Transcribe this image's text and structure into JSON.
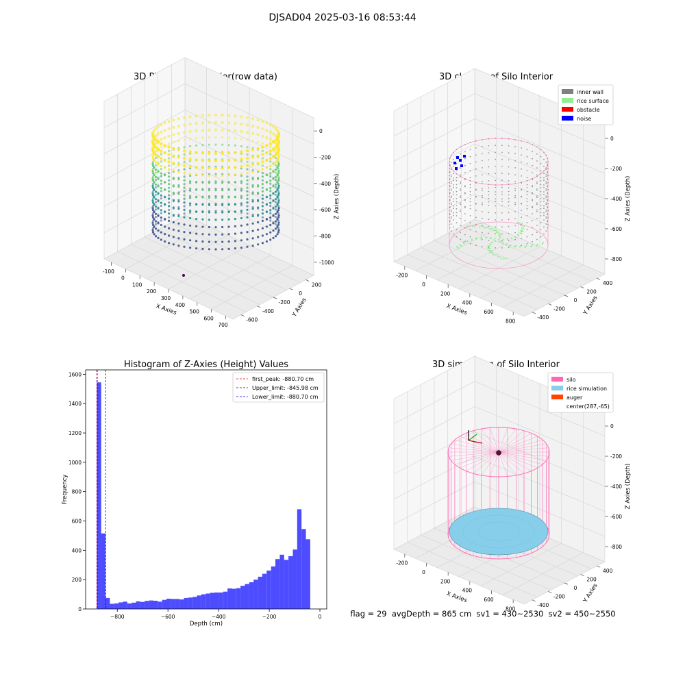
{
  "figure": {
    "suptitle": "DJSAD04 2025-03-16 08:53:44",
    "footer": "flag = 29  avgDepth = 865 cm  sv1 = 430~2530  sv2 = 450~2550"
  },
  "colors": {
    "inner_wall": "#808080",
    "rice_surface": "#90ee90",
    "obstacle": "#ff0000",
    "noise": "#0000ff",
    "silo": "#ff69b4",
    "rice_simulation": "#87ceeb",
    "auger": "#ff4500",
    "hist_bar": "#4d4dff",
    "first_peak": "#ff0000",
    "limit": "#0000ff"
  },
  "chart_data": [
    {
      "type": "scatter",
      "title": "3D Plot of Silo Interior(row data)",
      "xlabel": "X Axies",
      "ylabel": "Y Axies",
      "zlabel": "Z Axies (Depth)",
      "xticks": [
        "-100",
        "0",
        "100",
        "200",
        "300",
        "400",
        "500",
        "600",
        "700"
      ],
      "yticks": [
        "-600",
        "-400",
        "-200",
        "0",
        "200"
      ],
      "zticks": [
        "0",
        "-200",
        "-400",
        "-600",
        "-800",
        "-1000"
      ],
      "xlim": [
        -120,
        720
      ],
      "ylim": [
        -650,
        300
      ],
      "zlim": [
        -1150,
        50
      ],
      "colormap": "viridis",
      "grid": true
    },
    {
      "type": "scatter",
      "title": "3D classify of Silo Interior",
      "xlabel": "X Axies",
      "ylabel": "Y Axies",
      "zlabel": "Z Axies (Depth)",
      "xticks": [
        "-200",
        "0",
        "200",
        "400",
        "600",
        "800"
      ],
      "yticks": [
        "-400",
        "-200",
        "0",
        "200",
        "400"
      ],
      "zticks": [
        "0",
        "-200",
        "-400",
        "-600",
        "-800"
      ],
      "xlim": [
        -250,
        850
      ],
      "ylim": [
        -500,
        450
      ],
      "zlim": [
        -950,
        50
      ],
      "legend_position": "upper-right",
      "legend": [
        "inner wall",
        "rice surface",
        "obstacle",
        "noise"
      ],
      "grid": true
    },
    {
      "type": "bar",
      "title": "Histogram of Z-Axies (Height) Values",
      "xlabel": "Depth (cm)",
      "ylabel": "Frequency",
      "xlim": [
        -925,
        27
      ],
      "ylim": [
        0,
        1630
      ],
      "xticks": [
        -800,
        -600,
        -400,
        -200,
        0
      ],
      "yticks": [
        0,
        200,
        400,
        600,
        800,
        1000,
        1200,
        1400,
        1600
      ],
      "bin_start": -881,
      "bin_width": 17.2,
      "values": [
        1545,
        515,
        75,
        35,
        38,
        45,
        50,
        38,
        43,
        52,
        48,
        55,
        58,
        56,
        50,
        62,
        70,
        68,
        68,
        65,
        75,
        78,
        82,
        92,
        100,
        105,
        110,
        112,
        112,
        118,
        140,
        138,
        142,
        158,
        170,
        182,
        200,
        220,
        240,
        262,
        290,
        340,
        370,
        335,
        360,
        405,
        680,
        545,
        475
      ],
      "lines": [
        {
          "label": "first_peak: -880.70 cm",
          "x": -880.7,
          "color": "#ff0000"
        },
        {
          "label": "Upper_limit: -845.98 cm",
          "x": -845.98,
          "color": "#0000ff"
        },
        {
          "label": "Lower_limit: -880.70 cm",
          "x": -880.7,
          "color": "#0000ff"
        }
      ],
      "legend_position": "upper-right",
      "grid": false
    },
    {
      "type": "scatter",
      "title": "3D simulation of Silo Interior",
      "xlabel": "X Axies",
      "ylabel": "Y Axies",
      "zlabel": "Z Axies (Depth)",
      "xticks": [
        "-200",
        "0",
        "200",
        "400",
        "600",
        "800"
      ],
      "yticks": [
        "-400",
        "-200",
        "0",
        "200",
        "400"
      ],
      "zticks": [
        "0",
        "-200",
        "-400",
        "-600",
        "-800"
      ],
      "xlim": [
        -250,
        850
      ],
      "ylim": [
        -500,
        450
      ],
      "zlim": [
        -950,
        50
      ],
      "legend_position": "upper-right",
      "legend": [
        "silo",
        "rice simulation",
        "auger",
        "center(287,-65)"
      ],
      "grid": true
    }
  ]
}
